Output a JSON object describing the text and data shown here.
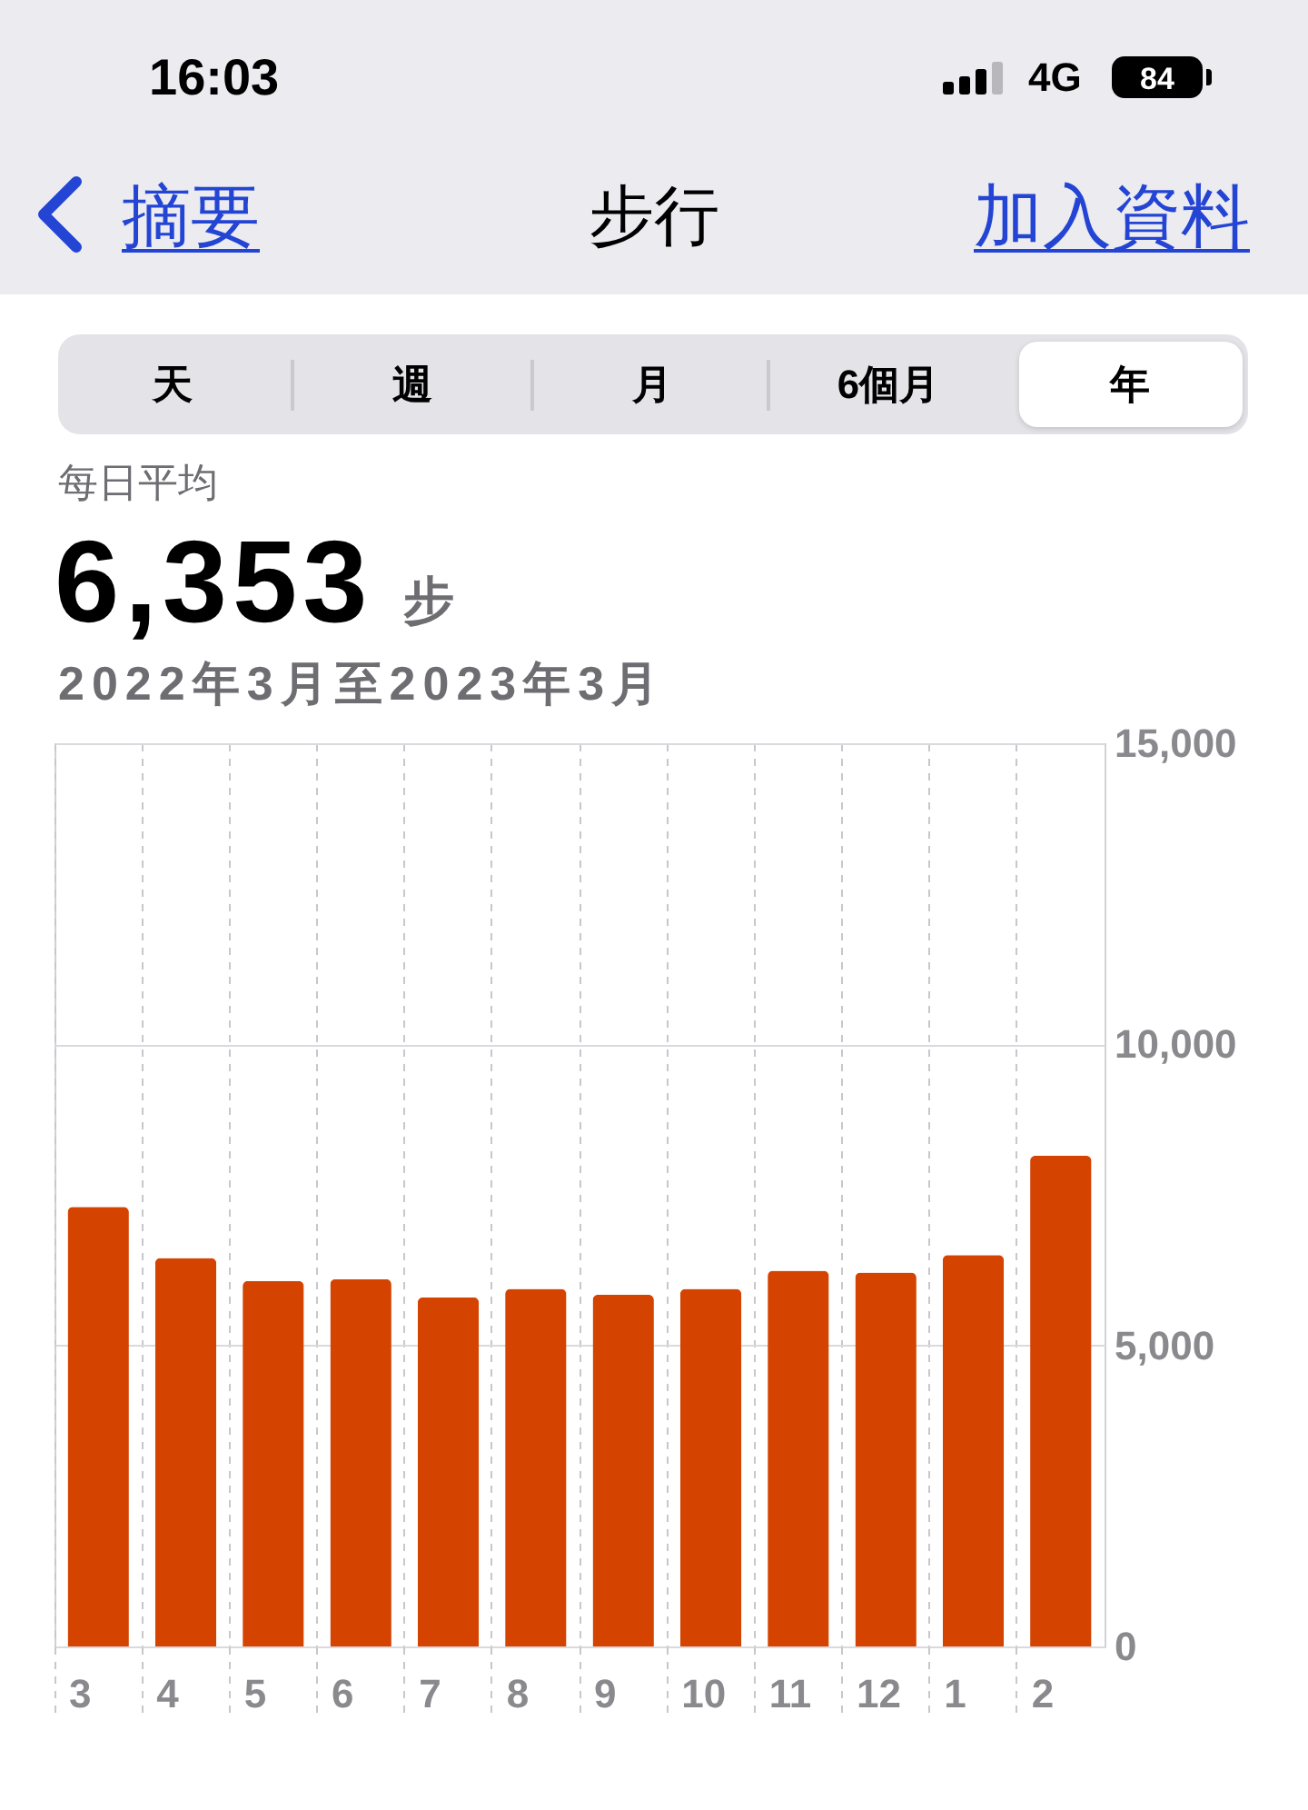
{
  "chart_data": {
    "type": "bar",
    "title": "步行",
    "subtitle": "2022年3月至2023年3月",
    "annotations": [
      "16:03",
      "4G",
      "84",
      "摘要",
      "加入資料",
      "天",
      "週",
      "月",
      "6個月",
      "年",
      "每日平均",
      "6,353",
      "步"
    ],
    "categories": [
      "3",
      "4",
      "5",
      "6",
      "7",
      "8",
      "9",
      "10",
      "11",
      "12",
      "1",
      "2"
    ],
    "values": [
      7300,
      6450,
      6070,
      6100,
      5800,
      5940,
      5840,
      5940,
      6240,
      6210,
      6500,
      8150
    ],
    "color": "#d44300",
    "ylim": [
      0,
      15000
    ],
    "yticks": [
      0,
      {
        "value": 5000,
        "label": "5,000"
      },
      {
        "value": 10000,
        "label": "10,000"
      },
      {
        "value": 15000,
        "label": "15,000"
      }
    ],
    "grid": true
  }
}
